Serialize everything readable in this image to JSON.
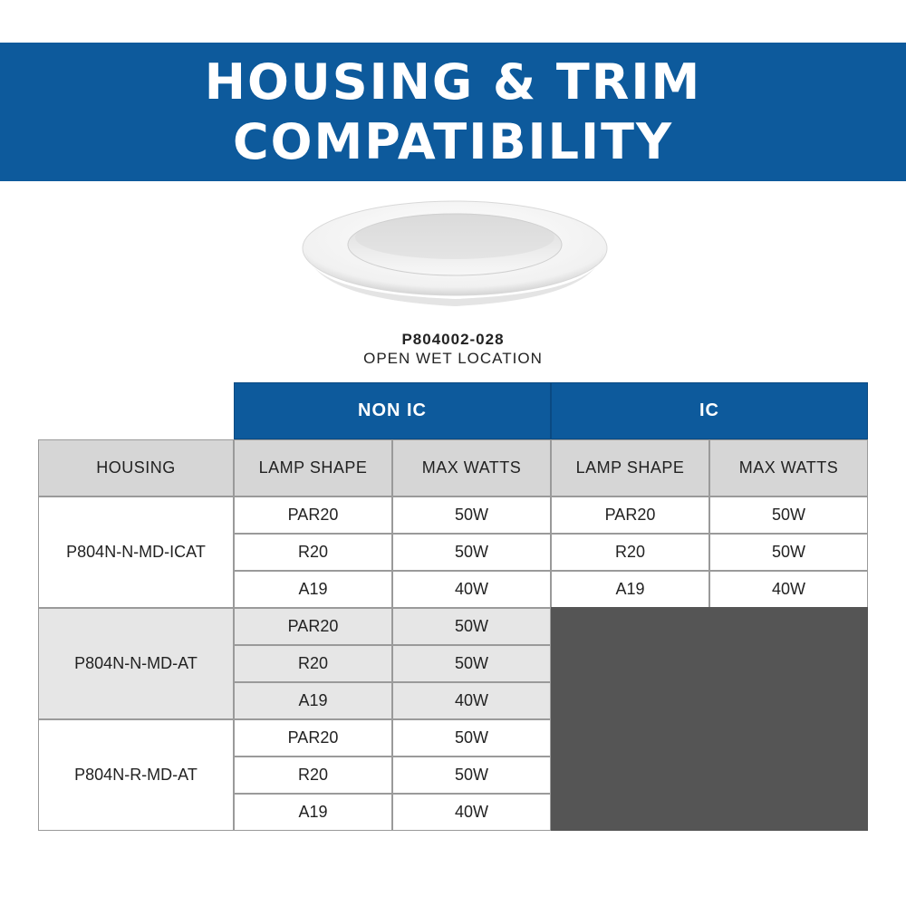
{
  "header": {
    "title_line1": "HOUSING & TRIM",
    "title_line2": "COMPATIBILITY"
  },
  "product": {
    "code": "P804002-028",
    "description": "OPEN WET LOCATION"
  },
  "table": {
    "group_headers": {
      "non_ic": "NON IC",
      "ic": "IC"
    },
    "column_headers": {
      "housing": "HOUSING",
      "non_ic_lamp_shape": "LAMP SHAPE",
      "non_ic_max_watts": "MAX WATTS",
      "ic_lamp_shape": "LAMP SHAPE",
      "ic_max_watts": "MAX WATTS"
    },
    "housings": [
      {
        "name": "P804N-N-MD-ICAT",
        "non_ic": [
          {
            "lamp": "PAR20",
            "watts": "50W"
          },
          {
            "lamp": "R20",
            "watts": "50W"
          },
          {
            "lamp": "A19",
            "watts": "40W"
          }
        ],
        "ic": [
          {
            "lamp": "PAR20",
            "watts": "50W"
          },
          {
            "lamp": "R20",
            "watts": "50W"
          },
          {
            "lamp": "A19",
            "watts": "40W"
          }
        ]
      },
      {
        "name": "P804N-N-MD-AT",
        "non_ic": [
          {
            "lamp": "PAR20",
            "watts": "50W"
          },
          {
            "lamp": "R20",
            "watts": "50W"
          },
          {
            "lamp": "A19",
            "watts": "40W"
          }
        ]
      },
      {
        "name": "P804N-R-MD-AT",
        "non_ic": [
          {
            "lamp": "PAR20",
            "watts": "50W"
          },
          {
            "lamp": "R20",
            "watts": "50W"
          },
          {
            "lamp": "A19",
            "watts": "40W"
          }
        ]
      }
    ]
  },
  "colors": {
    "brand_blue": "#0d5a9c",
    "header_gray": "#d6d6d6",
    "row_shade": "#e6e6e6",
    "not_applicable": "#555555"
  }
}
